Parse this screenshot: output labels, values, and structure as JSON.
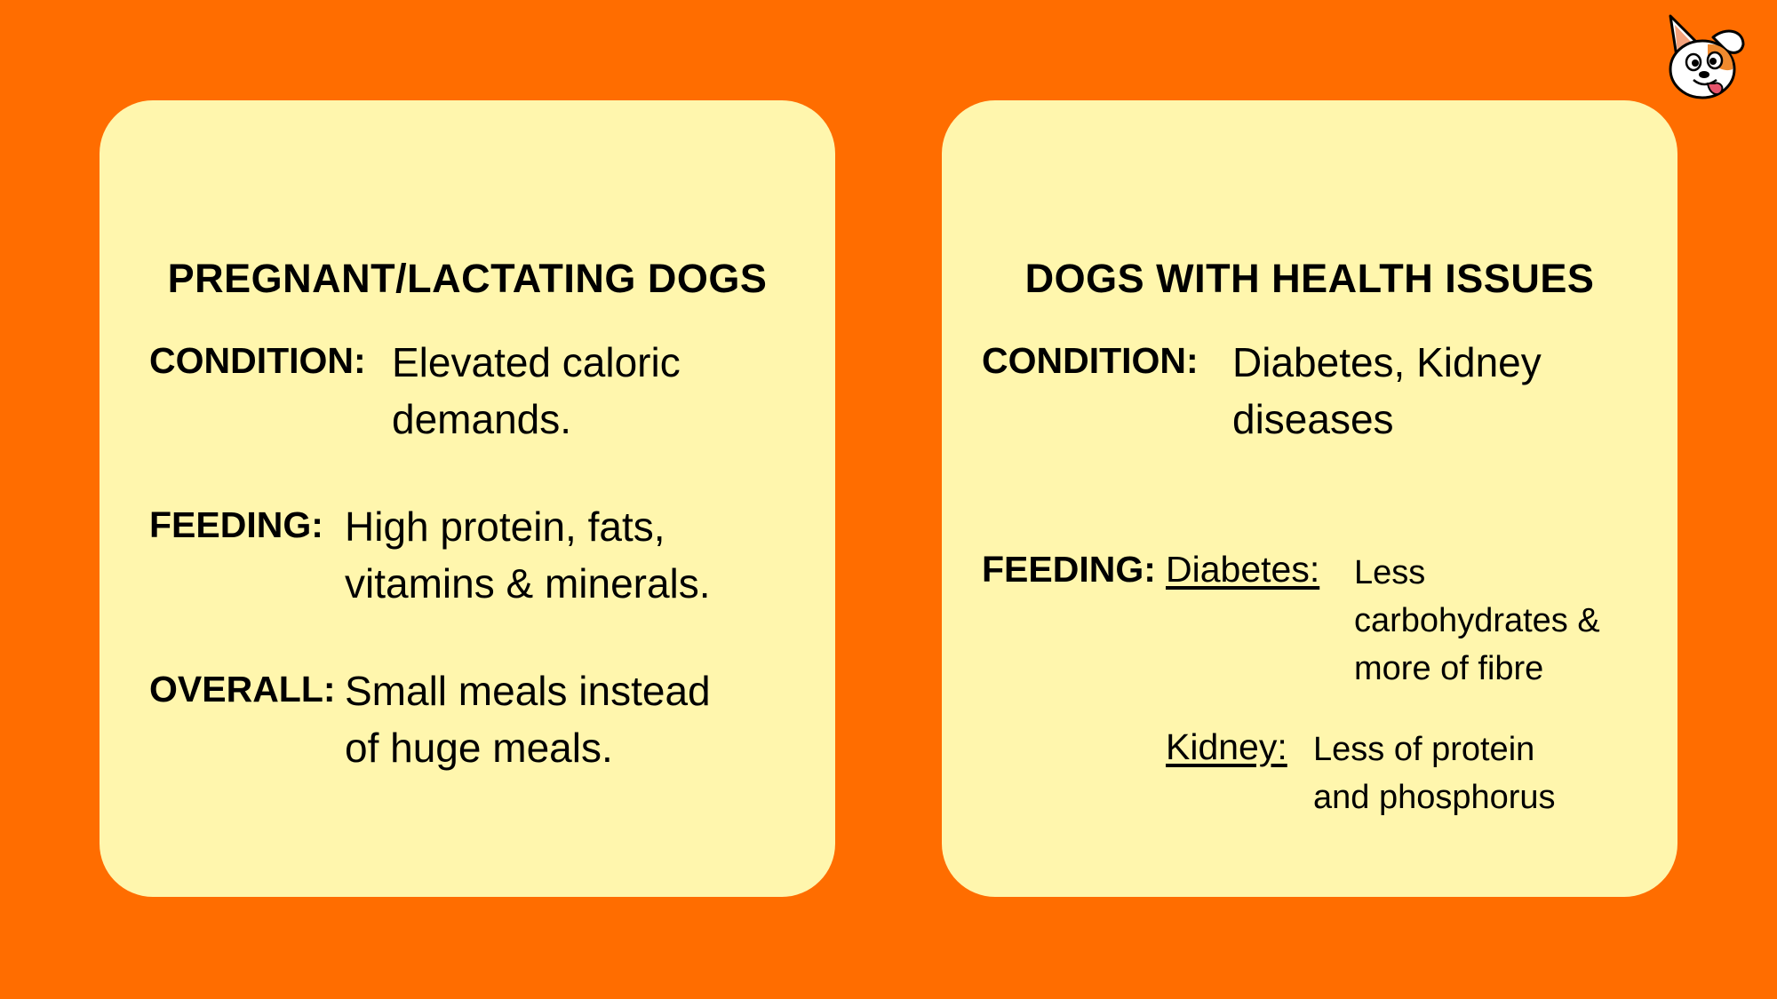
{
  "left_card": {
    "title": "PREGNANT/LACTATING DOGS",
    "condition": {
      "label": "CONDITION:",
      "lines": [
        "Elevated caloric",
        "demands."
      ]
    },
    "feeding": {
      "label": "FEEDING:",
      "lines": [
        "High protein, fats,",
        "vitamins & minerals."
      ]
    },
    "overall": {
      "label": "OVERALL:",
      "lines": [
        "Small meals instead",
        "of huge meals."
      ]
    }
  },
  "right_card": {
    "title": "DOGS WITH HEALTH ISSUES",
    "condition": {
      "label": "CONDITION:",
      "lines": [
        "Diabetes, Kidney",
        "diseases"
      ]
    },
    "feeding": {
      "label": "FEEDING:",
      "diabetes": {
        "label": "Diabetes:",
        "lines": [
          "Less",
          "carbohydrates &",
          "more of fibre"
        ]
      },
      "kidney": {
        "label": "Kidney:",
        "lines": [
          "Less of protein",
          "and phosphorus"
        ]
      }
    }
  },
  "colors": {
    "background": "#FF6D00",
    "card": "#FFF6AD",
    "text": "#000000"
  },
  "logo": {
    "icon": "dog-face-icon"
  }
}
